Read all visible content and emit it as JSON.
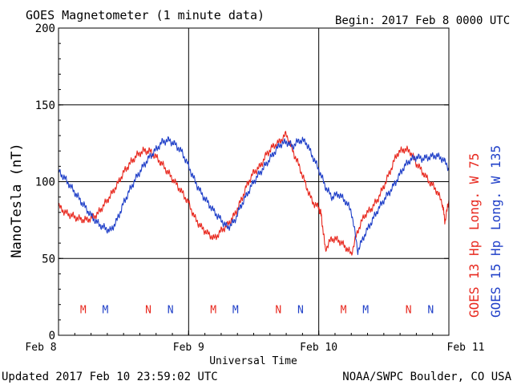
{
  "header": {
    "title": "GOES Magnetometer (1 minute data)",
    "begin_label": "Begin:",
    "begin_value": "2017 Feb 8 0000 UTC"
  },
  "footer": {
    "updated": "Updated 2017 Feb 10 23:59:02 UTC",
    "credit": "NOAA/SWPC Boulder, CO USA"
  },
  "colors": {
    "goes13": "#e8281e",
    "goes15": "#1f3fc8",
    "axis": "#000000"
  },
  "chart_data": {
    "type": "line",
    "title": "GOES Magnetometer (1 minute data)",
    "xlabel": "Universal Time",
    "ylabel": "NanoTesla (nT)",
    "x_unit": "days since 2017 Feb 8 0000 UTC",
    "xlim": [
      0,
      3
    ],
    "ylim": [
      0,
      200
    ],
    "y_ticks": [
      0,
      50,
      100,
      150,
      200
    ],
    "x_ticks": [
      {
        "x": 0,
        "label": "Feb 8"
      },
      {
        "x": 1,
        "label": "Feb 9"
      },
      {
        "x": 2,
        "label": "Feb 10"
      },
      {
        "x": 3,
        "label": "Feb 11"
      }
    ],
    "grid": true,
    "legend": "right side, vertical",
    "series": [
      {
        "name": "GOES 13 Hp",
        "legend_label": "GOES 13 Hp",
        "legend_long": "Long. W 75",
        "color": "#e8281e",
        "x": [
          0,
          0.05,
          0.1,
          0.15,
          0.2,
          0.25,
          0.3,
          0.35,
          0.4,
          0.45,
          0.5,
          0.55,
          0.6,
          0.65,
          0.7,
          0.75,
          0.8,
          0.85,
          0.9,
          0.95,
          1.0,
          1.05,
          1.1,
          1.15,
          1.2,
          1.25,
          1.3,
          1.35,
          1.4,
          1.45,
          1.5,
          1.55,
          1.6,
          1.65,
          1.7,
          1.75,
          1.8,
          1.85,
          1.9,
          1.95,
          2.0,
          2.02,
          2.05,
          2.1,
          2.15,
          2.2,
          2.25,
          2.3,
          2.35,
          2.4,
          2.45,
          2.5,
          2.55,
          2.6,
          2.65,
          2.7,
          2.75,
          2.8,
          2.85,
          2.9,
          2.95,
          2.97,
          3.0
        ],
        "y": [
          84,
          80,
          78,
          76,
          75,
          76,
          79,
          85,
          91,
          98,
          106,
          112,
          117,
          120,
          120,
          116,
          111,
          105,
          99,
          93,
          86,
          76,
          70,
          66,
          63,
          68,
          72,
          78,
          87,
          98,
          106,
          110,
          118,
          123,
          126,
          131,
          120,
          110,
          98,
          87,
          83,
          78,
          56,
          63,
          62,
          58,
          53,
          68,
          78,
          82,
          88,
          97,
          107,
          118,
          121,
          120,
          112,
          106,
          100,
          95,
          86,
          74,
          88
        ]
      },
      {
        "name": "GOES 15 Hp",
        "legend_label": "GOES 15 Hp",
        "legend_long": "Long. W 135",
        "color": "#1f3fc8",
        "x": [
          0,
          0.05,
          0.1,
          0.15,
          0.2,
          0.25,
          0.3,
          0.35,
          0.4,
          0.45,
          0.5,
          0.55,
          0.6,
          0.65,
          0.7,
          0.75,
          0.8,
          0.85,
          0.9,
          0.95,
          1.0,
          1.05,
          1.1,
          1.15,
          1.2,
          1.25,
          1.3,
          1.35,
          1.4,
          1.45,
          1.5,
          1.55,
          1.6,
          1.65,
          1.7,
          1.75,
          1.8,
          1.85,
          1.9,
          1.95,
          2.0,
          2.05,
          2.1,
          2.15,
          2.2,
          2.25,
          2.3,
          2.35,
          2.4,
          2.45,
          2.5,
          2.55,
          2.6,
          2.65,
          2.7,
          2.75,
          2.8,
          2.85,
          2.9,
          2.95,
          3.0
        ],
        "y": [
          107,
          102,
          96,
          90,
          84,
          78,
          73,
          70,
          68,
          75,
          86,
          95,
          103,
          110,
          116,
          121,
          126,
          127,
          124,
          119,
          110,
          100,
          92,
          86,
          80,
          75,
          70,
          74,
          84,
          92,
          100,
          106,
          112,
          118,
          124,
          126,
          123,
          127,
          126,
          117,
          108,
          97,
          90,
          92,
          88,
          81,
          55,
          65,
          73,
          81,
          88,
          94,
          101,
          109,
          114,
          116,
          115,
          116,
          117,
          115,
          109
        ]
      }
    ],
    "annotations": [
      {
        "text": "M",
        "x": 0.19,
        "y": 17,
        "color": "#e8281e"
      },
      {
        "text": "M",
        "x": 0.36,
        "y": 17,
        "color": "#1f3fc8"
      },
      {
        "text": "N",
        "x": 0.69,
        "y": 17,
        "color": "#e8281e"
      },
      {
        "text": "N",
        "x": 0.86,
        "y": 17,
        "color": "#1f3fc8"
      },
      {
        "text": "M",
        "x": 1.19,
        "y": 17,
        "color": "#e8281e"
      },
      {
        "text": "M",
        "x": 1.36,
        "y": 17,
        "color": "#1f3fc8"
      },
      {
        "text": "N",
        "x": 1.69,
        "y": 17,
        "color": "#e8281e"
      },
      {
        "text": "N",
        "x": 1.86,
        "y": 17,
        "color": "#1f3fc8"
      },
      {
        "text": "M",
        "x": 2.19,
        "y": 17,
        "color": "#e8281e"
      },
      {
        "text": "M",
        "x": 2.36,
        "y": 17,
        "color": "#1f3fc8"
      },
      {
        "text": "N",
        "x": 2.69,
        "y": 17,
        "color": "#e8281e"
      },
      {
        "text": "N",
        "x": 2.86,
        "y": 17,
        "color": "#1f3fc8"
      }
    ]
  }
}
